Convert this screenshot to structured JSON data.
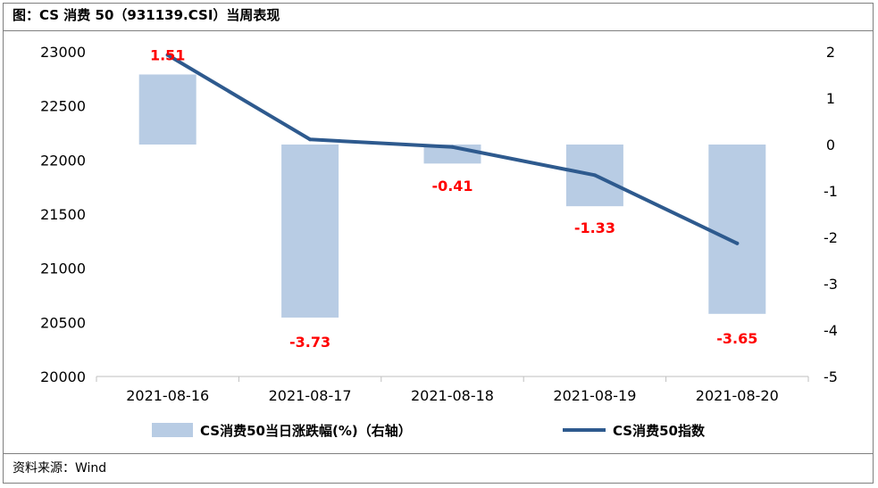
{
  "header": {
    "title": "图：CS 消费 50（931139.CSI）当周表现"
  },
  "footer": {
    "source": "资料来源：Wind"
  },
  "colors": {
    "bar": "#b8cce4",
    "line": "#2e5a8e",
    "label": "#ff0000",
    "axis": "#bfbfbf"
  },
  "chart_data": {
    "type": "bar+line",
    "categories": [
      "2021-08-16",
      "2021-08-17",
      "2021-08-18",
      "2021-08-19",
      "2021-08-20"
    ],
    "bar_series": {
      "name": "CS消费50当日涨跌幅(%)（右轴）",
      "axis": "right",
      "values": [
        1.51,
        -3.73,
        -0.41,
        -1.33,
        -3.65
      ],
      "labels": [
        "1.51",
        "-3.73",
        "-0.41",
        "-1.33",
        "-3.65"
      ]
    },
    "line_series": {
      "name": "CS消费50指数",
      "axis": "left",
      "values": [
        22970,
        22190,
        22120,
        21860,
        21230
      ]
    },
    "left_axis": {
      "ylim": [
        20000,
        23000
      ],
      "ticks": [
        "20000",
        "20500",
        "21000",
        "21500",
        "22000",
        "22500",
        "23000"
      ]
    },
    "right_axis": {
      "ylim": [
        -5,
        2
      ],
      "ticks": [
        "-5",
        "-4",
        "-3",
        "-2",
        "-1",
        "0",
        "1",
        "2"
      ]
    },
    "legend": {
      "position": "bottom"
    }
  }
}
